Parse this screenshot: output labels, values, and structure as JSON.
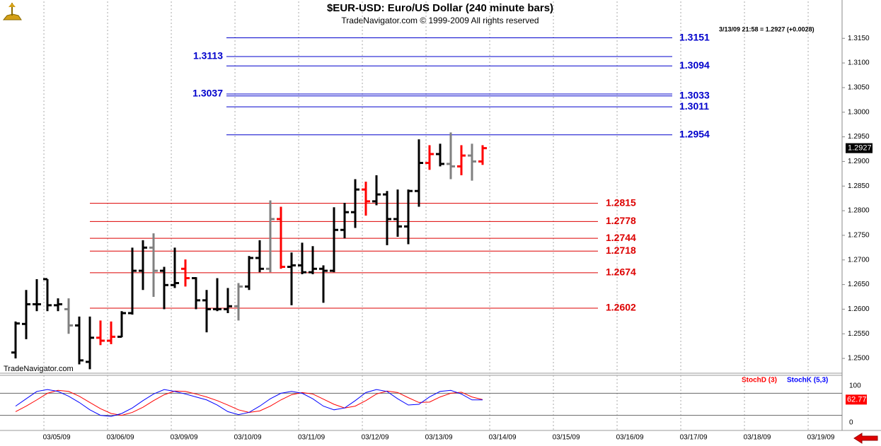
{
  "chart_data": [
    {
      "type": "ohlc",
      "title": "$EUR-USD:  Euro/US Dollar  (240 minute bars)",
      "subtitle": "TradeNavigator.com © 1999-2009 All rights reserved",
      "info": "3/13/09 21:58 = 1.2927 (+0.0028)",
      "watermark": "TradeNavigator.com",
      "xlim": [
        -1.467,
        77.867
      ],
      "ylim": [
        1.247,
        1.3225
      ],
      "yticks": [
        {
          "value": 1.25,
          "label": "1.2500"
        },
        {
          "value": 1.255,
          "label": "1.2550"
        },
        {
          "value": 1.26,
          "label": "1.2600"
        },
        {
          "value": 1.265,
          "label": "1.2650"
        },
        {
          "value": 1.27,
          "label": "1.2700"
        },
        {
          "value": 1.275,
          "label": "1.2750"
        },
        {
          "value": 1.28,
          "label": "1.2800"
        },
        {
          "value": 1.285,
          "label": "1.2850"
        },
        {
          "value": 1.29,
          "label": "1.2900"
        },
        {
          "value": 1.295,
          "label": "1.2950"
        },
        {
          "value": 1.3,
          "label": "1.3000"
        },
        {
          "value": 1.305,
          "label": "1.3050"
        },
        {
          "value": 1.31,
          "label": "1.3100"
        },
        {
          "value": 1.315,
          "label": "1.3150"
        }
      ],
      "bars": {
        "open": [
          1.2512,
          1.257,
          1.261,
          1.2661,
          1.2608,
          1.26,
          1.2567,
          1.2493,
          1.2542,
          1.2536,
          1.2544,
          1.2592,
          1.2678,
          1.2725,
          1.2678,
          1.2649,
          1.2682,
          1.2663,
          1.2618,
          1.26,
          1.26,
          1.2606,
          1.2646,
          1.2704,
          1.2682,
          1.2783,
          1.2686,
          1.2689,
          1.2675,
          1.2682,
          1.2678,
          1.2761,
          1.2797,
          1.2843,
          1.2819,
          1.2833,
          1.2783,
          1.2768,
          1.284,
          1.2897,
          1.2915,
          1.2895,
          1.289,
          1.2912,
          1.29
        ],
        "high": [
          1.2575,
          1.2639,
          1.2661,
          1.2661,
          1.2622,
          1.2622,
          1.2585,
          1.2585,
          1.2577,
          1.2575,
          1.2596,
          1.2725,
          1.274,
          1.2754,
          1.2686,
          1.2725,
          1.2701,
          1.2665,
          1.2639,
          1.2663,
          1.2643,
          1.2653,
          1.2708,
          1.274,
          1.2821,
          1.2808,
          1.2715,
          1.2735,
          1.2728,
          1.2689,
          1.2807,
          1.2816,
          1.2864,
          1.2859,
          1.2872,
          1.284,
          1.2843,
          1.2843,
          1.2945,
          1.2933,
          1.2936,
          1.2959,
          1.2933,
          1.2936,
          1.2933
        ],
        "low": [
          1.25,
          1.2539,
          1.2596,
          1.2596,
          1.2596,
          1.255,
          1.2488,
          1.2478,
          1.2527,
          1.2529,
          1.2543,
          1.2589,
          1.2639,
          1.2625,
          1.26,
          1.2643,
          1.2646,
          1.26,
          1.2553,
          1.2596,
          1.2592,
          1.2577,
          1.2639,
          1.2675,
          1.2675,
          1.2682,
          1.2608,
          1.2671,
          1.2671,
          1.2613,
          1.2675,
          1.2744,
          1.2765,
          1.279,
          1.2811,
          1.273,
          1.2747,
          1.2732,
          1.2808,
          1.2883,
          1.289,
          1.2864,
          1.2872,
          1.2861,
          1.2893
        ],
        "close": [
          1.2571,
          1.261,
          1.261,
          1.2608,
          1.261,
          1.2567,
          1.2496,
          1.2542,
          1.2536,
          1.2544,
          1.2592,
          1.2678,
          1.2725,
          1.2678,
          1.2649,
          1.2653,
          1.2663,
          1.2618,
          1.26,
          1.26,
          1.2606,
          1.2646,
          1.2704,
          1.2682,
          1.2783,
          1.2686,
          1.2689,
          1.2675,
          1.2682,
          1.2678,
          1.2761,
          1.2797,
          1.2843,
          1.2819,
          1.2833,
          1.2783,
          1.2768,
          1.284,
          1.2897,
          1.2915,
          1.2895,
          1.289,
          1.2912,
          1.29,
          1.2927
        ],
        "colors": [
          "#000000",
          "#000000",
          "#000000",
          "#000000",
          "#000000",
          "#808080",
          "#000000",
          "#000000",
          "#ff0000",
          "#ff0000",
          "#000000",
          "#000000",
          "#000000",
          "#808080",
          "#000000",
          "#000000",
          "#ff0000",
          "#000000",
          "#000000",
          "#000000",
          "#000000",
          "#808080",
          "#000000",
          "#000000",
          "#808080",
          "#ff0000",
          "#000000",
          "#000000",
          "#000000",
          "#000000",
          "#000000",
          "#000000",
          "#000000",
          "#ff0000",
          "#000000",
          "#000000",
          "#000000",
          "#000000",
          "#000000",
          "#ff0000",
          "#000000",
          "#808080",
          "#ff0000",
          "#808080",
          "#ff0000"
        ]
      },
      "level_groups": [
        {
          "color": "#0000cc",
          "levels": [
            {
              "value": 1.3151,
              "side": "right"
            },
            {
              "value": 1.3113,
              "side": "left"
            },
            {
              "value": 1.3094,
              "side": "right"
            },
            {
              "value": 1.3037,
              "side": "left"
            },
            {
              "value": 1.3033,
              "side": "right"
            },
            {
              "value": 1.3011,
              "side": "right"
            },
            {
              "value": 1.2954,
              "side": "right"
            }
          ]
        },
        {
          "color": "#dd0000",
          "levels": [
            {
              "value": 1.2815,
              "side": "right"
            },
            {
              "value": 1.2778,
              "side": "right"
            },
            {
              "value": 1.2744,
              "side": "right"
            },
            {
              "value": 1.2718,
              "side": "right"
            },
            {
              "value": 1.2674,
              "side": "right"
            },
            {
              "value": 1.2602,
              "side": "right"
            }
          ]
        }
      ]
    },
    {
      "type": "line",
      "xlim": [
        -1.467,
        77.867
      ],
      "xticks": [
        {
          "value": 2.67,
          "label": "03/05/09"
        },
        {
          "value": 8.67,
          "label": "03/06/09"
        },
        {
          "value": 14.67,
          "label": "03/09/09"
        },
        {
          "value": 20.67,
          "label": "03/10/09"
        },
        {
          "value": 26.67,
          "label": "03/11/09"
        },
        {
          "value": 32.67,
          "label": "03/12/09"
        },
        {
          "value": 38.67,
          "label": "03/13/09"
        },
        {
          "value": 44.67,
          "label": "03/14/09"
        },
        {
          "value": 50.67,
          "label": "03/15/09"
        },
        {
          "value": 56.67,
          "label": "03/16/09"
        },
        {
          "value": 62.67,
          "label": "03/17/09"
        },
        {
          "value": 68.67,
          "label": "03/18/09"
        },
        {
          "value": 74.67,
          "label": "03/19/09"
        }
      ],
      "ylim": [
        -19.2,
        128.8
      ],
      "yticks": [
        0,
        100
      ],
      "reference_lines": [
        20,
        80
      ],
      "series": [
        {
          "name": "StochD (3)",
          "color": "#ff0000",
          "values": [
            30,
            45,
            62,
            80,
            88,
            85,
            72,
            55,
            38,
            25,
            20,
            28,
            42,
            60,
            76,
            86,
            85,
            78,
            70,
            60,
            48,
            35,
            28,
            32,
            45,
            62,
            76,
            82,
            78,
            64,
            50,
            40,
            45,
            60,
            78,
            86,
            82,
            68,
            55,
            56,
            70,
            80,
            83,
            70,
            62.77
          ]
        },
        {
          "name": "StochK (5,3)",
          "color": "#0000ff",
          "values": [
            45,
            65,
            85,
            90,
            85,
            72,
            55,
            35,
            20,
            17,
            25,
            40,
            60,
            78,
            90,
            85,
            78,
            70,
            62,
            48,
            30,
            22,
            28,
            45,
            65,
            80,
            85,
            80,
            65,
            45,
            35,
            40,
            60,
            82,
            90,
            85,
            65,
            48,
            50,
            70,
            85,
            88,
            78,
            62,
            62
          ]
        }
      ]
    }
  ]
}
